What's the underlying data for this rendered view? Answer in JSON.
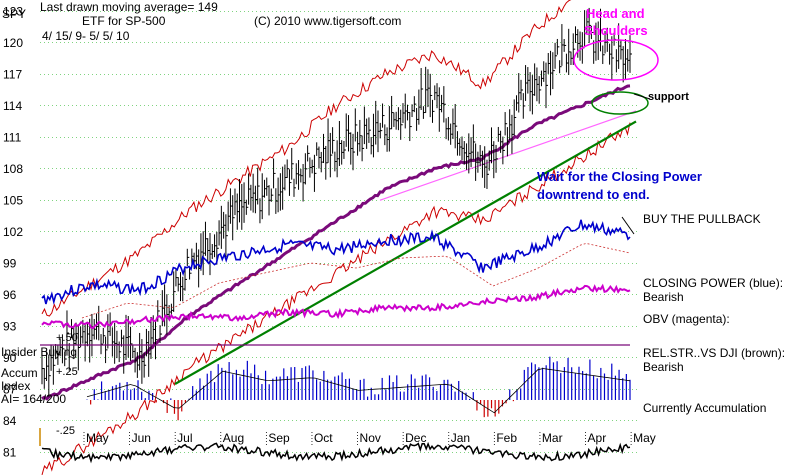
{
  "chart_data": {
    "type": "line",
    "header": {
      "symbol": "SPY",
      "ma_label": "Last drawn moving average= 149",
      "etf_label": "ETF for SP-500",
      "copyright": "(C) 2010 www.tigersoft.com",
      "date_range": "4/ 15/ 9- 5/ 5/ 10"
    },
    "y_ticks": [
      "123",
      "120",
      "117",
      "114",
      "111",
      "108",
      "105",
      "102",
      "99",
      "96",
      "93",
      "90",
      "87",
      "84",
      "81"
    ],
    "y_tick_values": [
      123,
      120,
      117,
      114,
      111,
      108,
      105,
      102,
      99,
      96,
      93,
      90,
      87,
      84,
      81
    ],
    "ylim": [
      79.5,
      125
    ],
    "months": [
      "May",
      "Jun",
      "Jul",
      "Aug",
      "Sep",
      "Oct",
      "Nov",
      "Dec",
      "Jan",
      "Feb",
      "Mar",
      "Apr",
      "May"
    ],
    "colors": {
      "price": "#000000",
      "band": "#cc0000",
      "ma": "#7a0a7a",
      "support": "#008000",
      "closing_power": "#0000cc",
      "obv": "#cc00cc",
      "head_shoulders": "#ff00ff",
      "grid": "#00aa00",
      "accum_positive": "#0000cc",
      "accum_negative": "#cc0000"
    },
    "price_series_approx": {
      "months_index": [
        0,
        1,
        2,
        3,
        4,
        5,
        6,
        7,
        8,
        9,
        10,
        11,
        12
      ],
      "close": [
        89,
        93,
        90,
        99,
        104,
        107,
        110,
        112,
        115,
        108,
        116,
        121,
        118
      ],
      "ma_149": [
        86,
        88,
        90,
        94,
        97,
        100,
        103,
        106,
        108,
        109,
        112,
        114,
        116
      ],
      "upper_band": [
        94,
        97,
        100,
        104,
        107,
        110,
        114,
        117,
        119,
        116,
        121,
        125,
        126
      ],
      "lower_band": [
        79,
        82,
        85,
        89,
        92,
        95,
        98,
        101,
        104,
        103,
        106,
        109,
        112
      ]
    },
    "annotations": {
      "head_shoulders": [
        "Head and",
        "Shoulders"
      ],
      "support": "support",
      "wait": [
        "Wait for the Closing  Power",
        "downtrend to end."
      ],
      "buy": "BUY THE PULLBACK",
      "closing_power": [
        "CLOSING POWER (blue):",
        "Bearish"
      ],
      "obv": "OBV (magenta):",
      "relstr": [
        "REL.STR..VS DJI (brown):",
        "Bearish"
      ],
      "accumulation": "Currently Accumulation"
    },
    "insider": {
      "label": "Insider Buying",
      "tick": "+.50"
    },
    "accum": {
      "label_lines": [
        "Accum",
        "Index",
        "AI= 164/200"
      ],
      "tick_upper": "+.25",
      "tick_lower": "-.25"
    }
  }
}
